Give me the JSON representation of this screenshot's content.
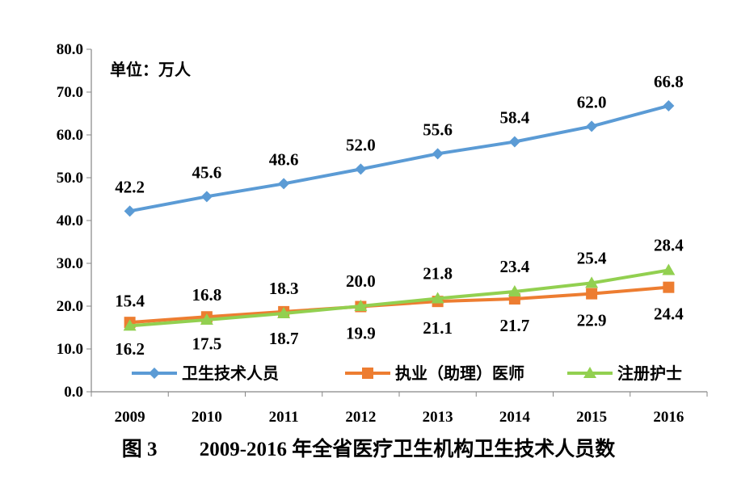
{
  "caption": {
    "label": "图 3",
    "text": "2009-2016 年全省医疗卫生机构卫生技术人员数"
  },
  "chart_data": {
    "type": "line",
    "unit_note": "单位：万人",
    "categories": [
      "2009",
      "2010",
      "2011",
      "2012",
      "2013",
      "2014",
      "2015",
      "2016"
    ],
    "ylim": [
      0,
      80
    ],
    "yticks": [
      "0.0",
      "10.0",
      "20.0",
      "30.0",
      "40.0",
      "50.0",
      "60.0",
      "70.0",
      "80.0"
    ],
    "grid": false,
    "legend_position": "bottom",
    "series": [
      {
        "name": "卫生技术人员",
        "color": "#5B9BD5",
        "marker": "diamond",
        "label_position": "above",
        "values": [
          42.2,
          45.6,
          48.6,
          52.0,
          55.6,
          58.4,
          62.0,
          66.8
        ],
        "labels": [
          "42.2",
          "45.6",
          "48.6",
          "52.0",
          "55.6",
          "58.4",
          "62.0",
          "66.8"
        ]
      },
      {
        "name": "执业（助理）医师",
        "color": "#ED7D31",
        "marker": "square",
        "label_position": "below",
        "values": [
          16.2,
          17.5,
          18.7,
          19.9,
          21.1,
          21.7,
          22.9,
          24.4
        ],
        "labels": [
          "16.2",
          "17.5",
          "18.7",
          "19.9",
          "21.1",
          "21.7",
          "22.9",
          "24.4"
        ]
      },
      {
        "name": "注册护士",
        "color": "#92D050",
        "marker": "triangle",
        "label_position": "above",
        "values": [
          15.4,
          16.8,
          18.3,
          20.0,
          21.8,
          23.4,
          25.4,
          28.4
        ],
        "labels": [
          "15.4",
          "16.8",
          "18.3",
          "20.0",
          "21.8",
          "23.4",
          "25.4",
          "28.4"
        ]
      }
    ]
  }
}
